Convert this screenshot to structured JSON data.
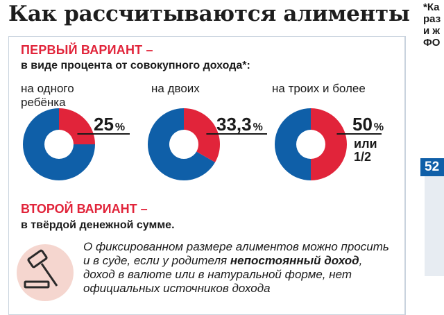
{
  "title": "Как рассчитываются алименты",
  "note": {
    "lines": [
      "*Ка",
      "раз",
      "и ж",
      "ФО"
    ]
  },
  "side_badge": "52",
  "variant1": {
    "title": "ПЕРВЫЙ ВАРИАНТ –",
    "subtitle": "в виде процента от совокупного дохода*:"
  },
  "variant2": {
    "title": "ВТОРОЙ ВАРИАНТ –",
    "subtitle": "в твёрдой денежной сумме.",
    "text_part1": "О фиксированном размере алиментов можно просить и в суде, если у родителя ",
    "text_bold": "непостоянный доход",
    "text_part2": ", доход в валюте или в натуральной форме, нет официальных источников дохода"
  },
  "colors": {
    "red": "#e1243a",
    "blue": "#0f5fa8",
    "accent_text": "#e1243a"
  },
  "chart_data": {
    "type": "pie",
    "categories": [
      "на одного ребёнка",
      "на двоих",
      "на троих и более"
    ],
    "values": [
      25,
      33.3,
      50
    ],
    "value_labels": [
      "25",
      "33,3",
      "50"
    ],
    "unit": "%",
    "extra_labels": [
      "",
      "",
      "или 1/2"
    ],
    "category_lines": [
      [
        "на одного",
        "ребёнка"
      ],
      [
        "на двоих"
      ],
      [
        "на троих и более"
      ]
    ],
    "extra_lines": [
      [],
      [],
      [
        "или",
        "1/2"
      ]
    ],
    "legend": "none"
  }
}
